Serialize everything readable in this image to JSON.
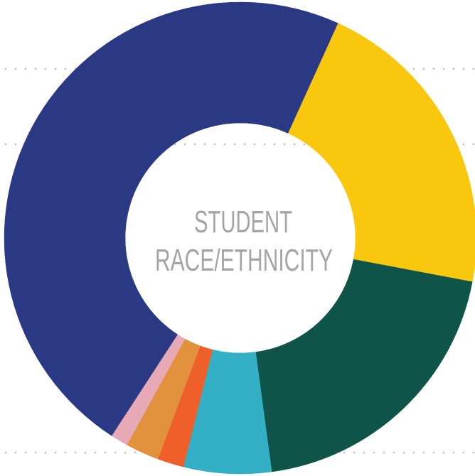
{
  "chart_data": {
    "type": "donut",
    "title_lines": [
      "STUDENT",
      "RACE/ETHNICITY"
    ],
    "categories": [
      null,
      null,
      null,
      null,
      null,
      null,
      null
    ],
    "values": [
      21.2,
      19.9,
      6.0,
      1.8,
      2.3,
      1.2,
      47.6
    ],
    "colors": [
      "#f9c80e",
      "#0e5448",
      "#33b0c5",
      "#ef5f2a",
      "#e2913d",
      "#e6a9b5",
      "#2b3985"
    ]
  }
}
